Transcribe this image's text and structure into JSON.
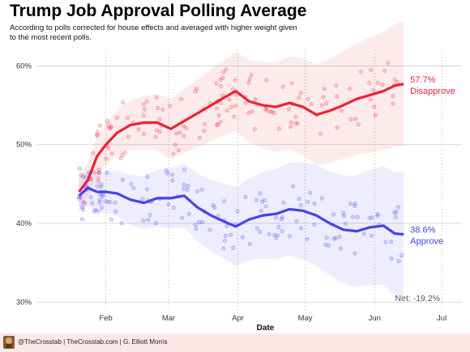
{
  "header": {
    "title": "Trump Job Approval Polling Average",
    "subtitle": "According to polls corrected for house effects and averaged with higher weight given to the most recent polls."
  },
  "footer": {
    "credit": "@TheCrosstab | TheCrosstab.com | G. Elliott Morris"
  },
  "colors": {
    "approve": "#4444ee",
    "disapprove": "#ee2233",
    "grid": "#cfcfcf",
    "footer_bg": "#fde8e8"
  },
  "chart_data": {
    "type": "line",
    "xlabel": "Date",
    "ylabel": "",
    "x_ticks": [
      "Feb",
      "Mar",
      "Apr",
      "May",
      "Jun",
      "Jul"
    ],
    "y_ticks": [
      "30%",
      "40%",
      "50%",
      "60%"
    ],
    "ylim": [
      29,
      62
    ],
    "x_start": "2017-01-20",
    "x_end": "2017-06-14",
    "series": [
      {
        "name": "Disapprove",
        "label_value": "57.7%",
        "x": [
          "2017-01-20",
          "2017-01-24",
          "2017-01-28",
          "2017-02-01",
          "2017-02-06",
          "2017-02-12",
          "2017-02-18",
          "2017-02-24",
          "2017-03-02",
          "2017-03-08",
          "2017-03-14",
          "2017-03-20",
          "2017-03-26",
          "2017-03-31",
          "2017-04-06",
          "2017-04-12",
          "2017-04-18",
          "2017-04-24",
          "2017-04-30",
          "2017-05-06",
          "2017-05-12",
          "2017-05-18",
          "2017-05-24",
          "2017-05-30",
          "2017-06-05",
          "2017-06-10",
          "2017-06-14"
        ],
        "values": [
          44.0,
          45.5,
          48.5,
          50.0,
          51.5,
          52.5,
          52.8,
          52.8,
          52.0,
          53.0,
          54.0,
          55.0,
          56.0,
          56.8,
          55.5,
          55.0,
          54.8,
          55.3,
          54.8,
          53.8,
          54.3,
          55.0,
          55.8,
          56.3,
          56.8,
          57.5,
          57.7
        ]
      },
      {
        "name": "Approve",
        "label_value": "38.6%",
        "x": [
          "2017-01-20",
          "2017-01-24",
          "2017-01-28",
          "2017-02-01",
          "2017-02-06",
          "2017-02-12",
          "2017-02-18",
          "2017-02-24",
          "2017-03-02",
          "2017-03-08",
          "2017-03-14",
          "2017-03-20",
          "2017-03-26",
          "2017-03-31",
          "2017-04-06",
          "2017-04-12",
          "2017-04-18",
          "2017-04-24",
          "2017-04-30",
          "2017-05-06",
          "2017-05-12",
          "2017-05-18",
          "2017-05-24",
          "2017-05-30",
          "2017-06-05",
          "2017-06-10",
          "2017-06-14"
        ],
        "values": [
          43.5,
          44.5,
          44.0,
          44.0,
          43.8,
          43.0,
          42.6,
          43.2,
          43.2,
          43.5,
          42.0,
          41.0,
          40.2,
          39.6,
          40.5,
          41.0,
          41.2,
          41.8,
          41.6,
          41.0,
          40.0,
          39.2,
          39.0,
          39.5,
          39.7,
          38.7,
          38.6
        ]
      }
    ],
    "annotation": "Net: -19.2%",
    "grid": true,
    "legend": "inline labels at right"
  }
}
